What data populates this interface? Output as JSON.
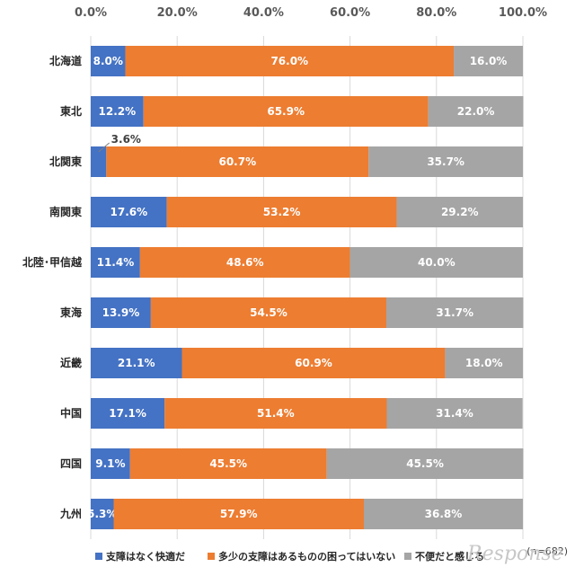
{
  "chart_data": {
    "type": "bar",
    "orientation": "horizontal",
    "stacked": true,
    "percent": true,
    "xlim": [
      0,
      100
    ],
    "x_ticks": [
      "0.0%",
      "20.0%",
      "40.0%",
      "60.0%",
      "80.0%",
      "100.0%"
    ],
    "grid": true,
    "categories": [
      "北海道",
      "東北",
      "北関東",
      "南関東",
      "北陸･甲信越",
      "東海",
      "近畿",
      "中国",
      "四国",
      "九州"
    ],
    "series": [
      {
        "name": "支障はなく快適だ",
        "color": "#4472C4",
        "values": [
          8.0,
          12.2,
          3.6,
          17.6,
          11.4,
          13.9,
          21.1,
          17.1,
          9.1,
          5.3
        ]
      },
      {
        "name": "多少の支障はあるものの困ってはいない",
        "color": "#ED7D31",
        "values": [
          76.0,
          65.9,
          60.7,
          53.2,
          48.6,
          54.5,
          60.9,
          51.4,
          45.5,
          57.9
        ]
      },
      {
        "name": "不便だと感じる",
        "color": "#A5A5A5",
        "values": [
          16.0,
          22.0,
          35.7,
          29.2,
          40.0,
          31.7,
          18.0,
          31.4,
          45.5,
          36.8
        ]
      }
    ],
    "legend_position": "bottom",
    "note": "(n=682)",
    "watermark": "Response"
  }
}
